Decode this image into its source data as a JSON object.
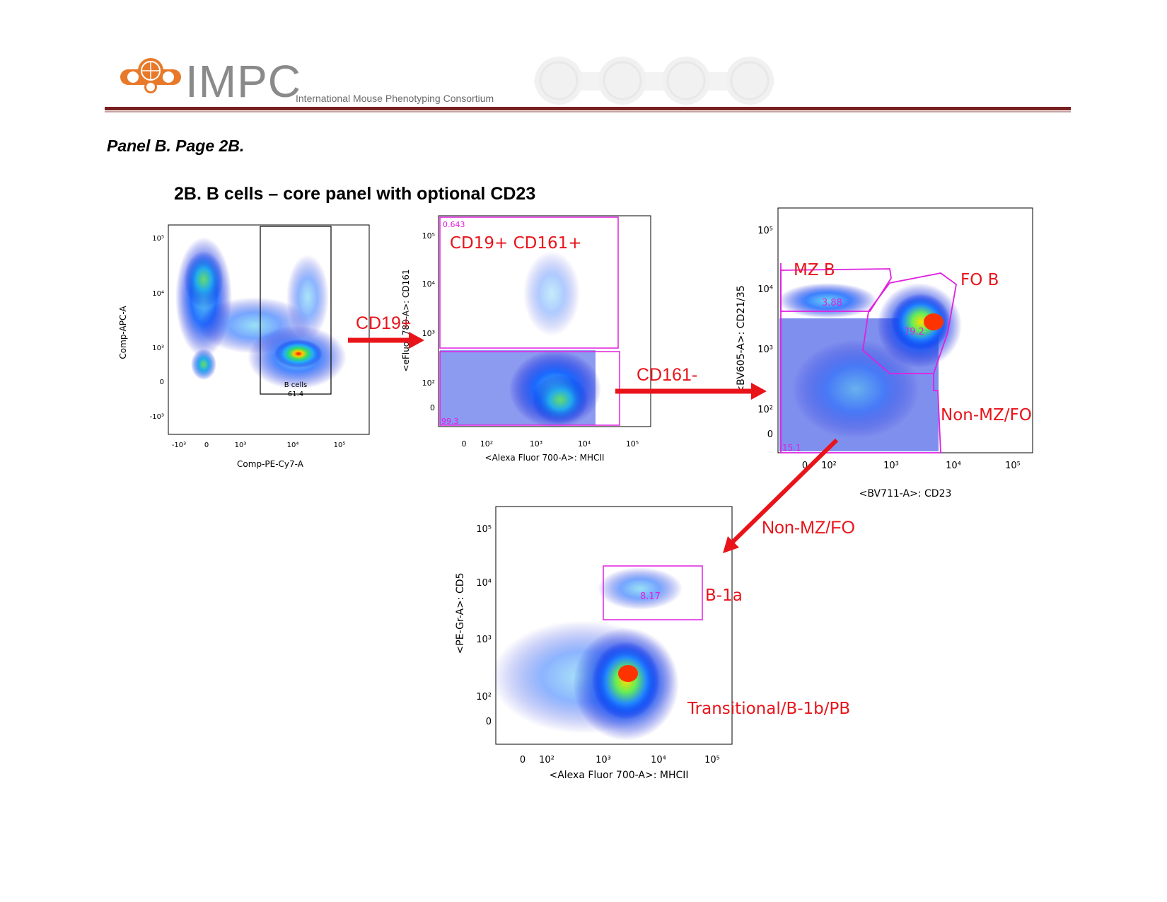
{
  "header": {
    "logo_text": "IMPC",
    "logo_subtitle": "International Mouse Phenotyping Consortium",
    "accent_color": "#e8792a",
    "rule_color": "#7a1f1f"
  },
  "panel_label": "Panel B. Page 2B.",
  "section_title": "2B. B cells – core panel with optional CD23",
  "flow_labels": {
    "cd19": "CD19+",
    "cd161neg": "CD161-",
    "nonmzfo": "Non-MZ/FO"
  },
  "chart_data": [
    {
      "type": "scatter",
      "id": "plot1",
      "xlabel": "Comp-PE-Cy7-A",
      "ylabel": "Comp-APC-A",
      "x_ticks": [
        "-10³",
        "0",
        "10³",
        "10⁴",
        "10⁵"
      ],
      "y_ticks": [
        "10⁵",
        "10⁴",
        "10³",
        "0",
        "-10³"
      ],
      "gates": [
        {
          "name": "B cells",
          "value": "61.4"
        }
      ]
    },
    {
      "type": "scatter",
      "id": "plot2",
      "xlabel": "<Alexa Fluor 700-A>: MHCII",
      "ylabel": "<eFluor 780-A>: CD161",
      "x_ticks": [
        "0",
        "10²",
        "10³",
        "10⁴",
        "10⁵"
      ],
      "y_ticks": [
        "10⁵",
        "10⁴",
        "10³",
        "10²",
        "0"
      ],
      "gates": [
        {
          "name": "CD19+ CD161+",
          "value": "0.643"
        },
        {
          "name": "",
          "value": "99.3"
        }
      ]
    },
    {
      "type": "scatter",
      "id": "plot3",
      "xlabel": "<BV711-A>: CD23",
      "ylabel": "<BV605-A>: CD21/35",
      "x_ticks": [
        "0",
        "10²",
        "10³",
        "10⁴",
        "10⁵"
      ],
      "y_ticks": [
        "10⁵",
        "10⁴",
        "10³",
        "10²",
        "0"
      ],
      "gates": [
        {
          "name": "MZ B",
          "value": "3.88"
        },
        {
          "name": "FO B",
          "value": "79.2"
        },
        {
          "name": "Non-MZ/FO",
          "value": "15.1"
        }
      ]
    },
    {
      "type": "scatter",
      "id": "plot4",
      "xlabel": "<Alexa Fluor 700-A>: MHCII",
      "ylabel": "<PE-Gr-A>: CD5",
      "x_ticks": [
        "0",
        "10²",
        "10³",
        "10⁴",
        "10⁵"
      ],
      "y_ticks": [
        "10⁵",
        "10⁴",
        "10³",
        "10²",
        "0"
      ],
      "gates": [
        {
          "name": "B-1a",
          "value": "8.17"
        },
        {
          "name": "Transitional/B-1b/PB",
          "value": ""
        }
      ]
    }
  ]
}
